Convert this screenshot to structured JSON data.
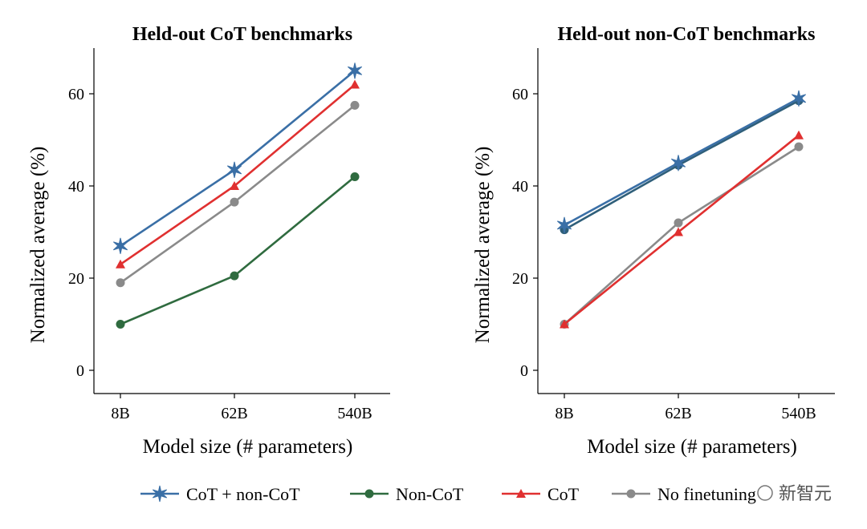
{
  "chart_data": [
    {
      "type": "line",
      "title": "Held-out CoT benchmarks",
      "xlabel": "Model size (# parameters)",
      "ylabel": "Normalized average (%)",
      "categories": [
        "8B",
        "62B",
        "540B"
      ],
      "yticks": [
        0,
        20,
        40,
        60
      ],
      "ylim": [
        -5,
        70
      ],
      "series": [
        {
          "name": "CoT + non-CoT",
          "values": [
            27,
            43.5,
            65
          ]
        },
        {
          "name": "Non-CoT",
          "values": [
            10,
            20.5,
            42
          ]
        },
        {
          "name": "CoT",
          "values": [
            23,
            40,
            62
          ]
        },
        {
          "name": "No finetuning",
          "values": [
            19,
            36.5,
            57.5
          ]
        }
      ]
    },
    {
      "type": "line",
      "title": "Held-out non-CoT benchmarks",
      "xlabel": "Model size (# parameters)",
      "ylabel": "Normalized average (%)",
      "categories": [
        "8B",
        "62B",
        "540B"
      ],
      "yticks": [
        0,
        20,
        40,
        60
      ],
      "ylim": [
        -5,
        70
      ],
      "series": [
        {
          "name": "CoT + non-CoT",
          "values": [
            31.5,
            45,
            59
          ]
        },
        {
          "name": "Non-CoT",
          "values": [
            30.5,
            44.5,
            58.5
          ]
        },
        {
          "name": "CoT",
          "values": [
            10,
            30,
            51
          ]
        },
        {
          "name": "No finetuning",
          "values": [
            10,
            32,
            48.5
          ]
        }
      ]
    }
  ],
  "legend": {
    "placement": "bottom",
    "items": [
      {
        "label": "CoT + non-CoT",
        "color": "#3a6fa6",
        "marker": "star"
      },
      {
        "label": "Non-CoT",
        "color": "#2f6b3f",
        "marker": "circle"
      },
      {
        "label": "CoT",
        "color": "#e03030",
        "marker": "triangle"
      },
      {
        "label": "No finetuning",
        "color": "#8a8a8a",
        "marker": "circle"
      }
    ]
  },
  "watermark": "新智元"
}
